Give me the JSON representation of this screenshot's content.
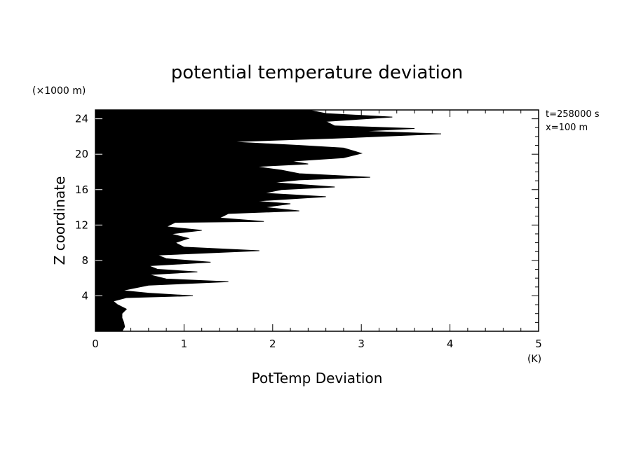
{
  "chart_data": {
    "type": "area",
    "title": "potential temperature deviation",
    "xlabel": "PotTemp Deviation",
    "ylabel": "Z coordinate",
    "x_unit": "(K)",
    "y_unit": "(×1000 m)",
    "xlim": [
      0,
      5
    ],
    "ylim": [
      0,
      25
    ],
    "x_ticks": [
      "0",
      "1",
      "2",
      "3",
      "4",
      "5"
    ],
    "y_ticks": [
      "4",
      "8",
      "12",
      "16",
      "20",
      "24"
    ],
    "annotations": [
      "t=258000 s",
      "x=100 m"
    ],
    "grid": false,
    "colors": {
      "fill": "#000000",
      "axes": "#000000"
    },
    "series": [
      {
        "x": [
          0.3,
          0.33,
          0.32,
          0.3,
          0.3,
          0.35,
          0.25,
          0.2,
          0.35,
          0.7,
          1.1,
          0.6,
          0.3,
          0.6,
          1.5,
          0.8,
          0.6,
          1.15,
          0.7,
          0.6,
          1.3,
          0.8,
          0.7,
          1.85,
          1.0,
          0.9,
          1.05,
          0.85,
          1.2,
          0.8,
          0.9,
          1.9,
          1.4,
          1.5,
          2.3,
          1.9,
          2.2,
          1.8,
          2.6,
          1.9,
          2.1,
          2.7,
          2.0,
          2.3,
          3.1,
          2.3,
          2.1,
          1.8,
          2.4,
          2.2,
          2.8,
          3.0,
          2.8,
          2.3,
          1.5,
          2.7,
          3.9,
          3.0,
          3.6,
          2.7,
          2.6,
          3.35,
          2.6,
          2.4
        ],
        "y": [
          0,
          0.5,
          1.0,
          1.5,
          2.0,
          2.5,
          3.0,
          3.4,
          3.8,
          3.9,
          4.0,
          4.3,
          4.6,
          5.2,
          5.6,
          5.9,
          6.4,
          6.7,
          7.0,
          7.4,
          7.8,
          8.2,
          8.6,
          9.1,
          9.5,
          10.0,
          10.5,
          11.0,
          11.4,
          11.8,
          12.3,
          12.4,
          12.8,
          13.3,
          13.6,
          14.0,
          14.4,
          14.7,
          15.2,
          15.6,
          16.0,
          16.3,
          16.8,
          17.1,
          17.4,
          17.8,
          18.2,
          18.6,
          18.9,
          19.2,
          19.6,
          20.1,
          20.7,
          21.0,
          21.4,
          21.8,
          22.3,
          22.6,
          22.9,
          23.2,
          23.7,
          24.2,
          24.6,
          25.0
        ]
      }
    ]
  }
}
